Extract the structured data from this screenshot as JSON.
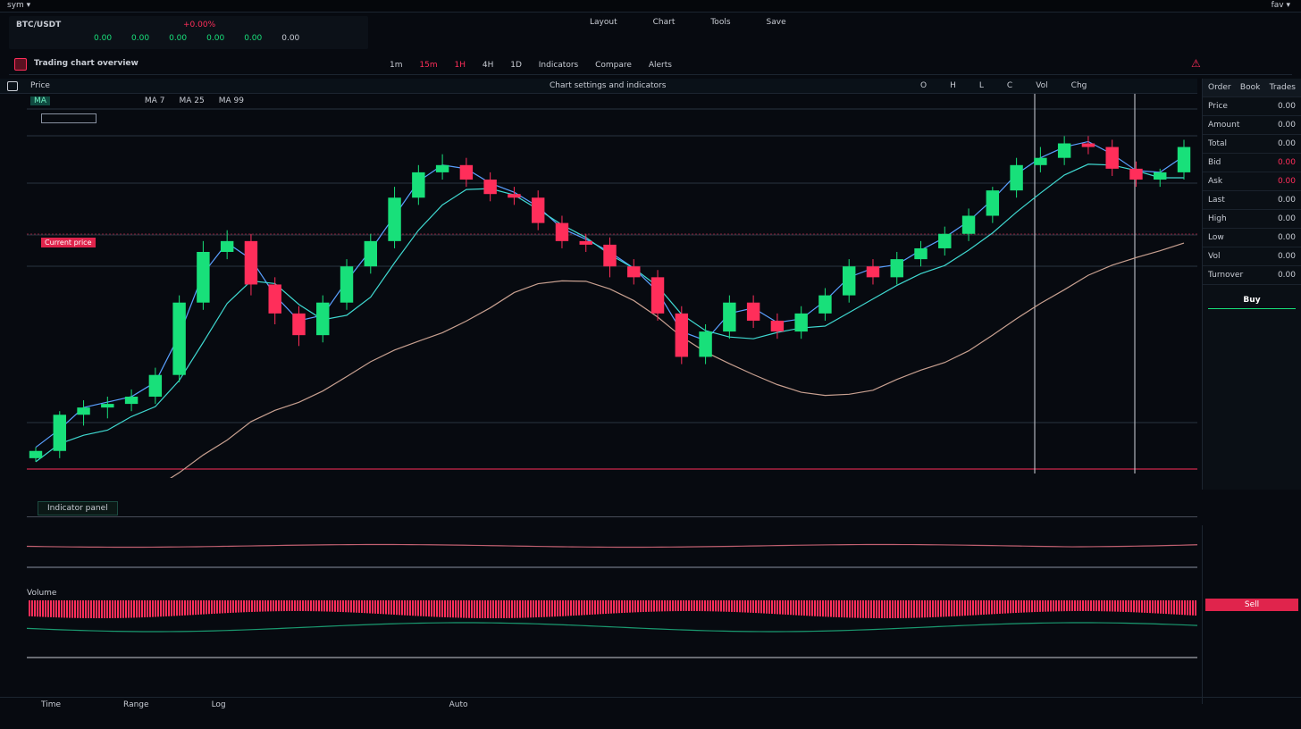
{
  "colors": {
    "up": "#18e07a",
    "down": "#ff2e5a",
    "ma_fast": "#5aa0ff",
    "ma_mid": "#3fd8d0",
    "ma_slow": "#c8a090",
    "bg": "#070a10"
  },
  "topbar": {
    "left": "sym ▾",
    "right": "fav ▾"
  },
  "ticker": {
    "symbol": "BTC/USDT",
    "change": "+0.00%",
    "stats": [
      "0.00",
      "0.00",
      "0.00",
      "0.00",
      "0.00",
      "0.00"
    ]
  },
  "toolbar": {
    "title": "Trading chart overview",
    "items": [
      "1m",
      "15m",
      "1H",
      "4H",
      "1D",
      "Indicators",
      "Compare",
      "Alerts"
    ],
    "alert_icon": "warning-icon"
  },
  "chart_header": {
    "left": "Price",
    "center": "Chart settings and indicators",
    "right": [
      "O",
      "H",
      "L",
      "C",
      "Vol",
      "Chg"
    ]
  },
  "legend": {
    "label": "MA",
    "values": [
      "MA 7",
      "MA 25",
      "MA 99"
    ]
  },
  "price_tag": "Current price",
  "top_nav": [
    "Layout",
    "Chart",
    "Tools",
    "Save"
  ],
  "right_panel": {
    "tabs": [
      "Order",
      "Book",
      "Trades"
    ],
    "rows": [
      [
        "Price",
        "0.00"
      ],
      [
        "Amount",
        "0.00"
      ],
      [
        "Total",
        "0.00"
      ],
      [
        "Bid",
        "0.00"
      ],
      [
        "Ask",
        "0.00"
      ],
      [
        "Last",
        "0.00"
      ],
      [
        "High",
        "0.00"
      ],
      [
        "Low",
        "0.00"
      ],
      [
        "Vol",
        "0.00"
      ],
      [
        "Turnover",
        "0.00"
      ]
    ],
    "buy_button": "Buy",
    "sell_button": "Sell"
  },
  "sub1": {
    "label": "Indicator panel"
  },
  "sub2": {
    "label": "Volume"
  },
  "bottom": {
    "items": [
      "Time",
      "Range",
      "Log",
      "Auto"
    ]
  },
  "chart_data": {
    "type": "candlestick",
    "ylim": [
      0,
      100
    ],
    "candles": [
      [
        3,
        6,
        2,
        5
      ],
      [
        5,
        16,
        3,
        15
      ],
      [
        15,
        19,
        12,
        17
      ],
      [
        17,
        20,
        14,
        18
      ],
      [
        18,
        22,
        16,
        20
      ],
      [
        20,
        28,
        18,
        26
      ],
      [
        26,
        48,
        24,
        46
      ],
      [
        46,
        63,
        44,
        60
      ],
      [
        60,
        66,
        58,
        63
      ],
      [
        63,
        65,
        48,
        51
      ],
      [
        51,
        53,
        40,
        43
      ],
      [
        43,
        45,
        34,
        37
      ],
      [
        37,
        48,
        35,
        46
      ],
      [
        46,
        58,
        44,
        56
      ],
      [
        56,
        65,
        54,
        63
      ],
      [
        63,
        78,
        61,
        75
      ],
      [
        75,
        84,
        73,
        82
      ],
      [
        82,
        87,
        80,
        84
      ],
      [
        84,
        86,
        78,
        80
      ],
      [
        80,
        82,
        74,
        76
      ],
      [
        76,
        78,
        73,
        75
      ],
      [
        75,
        77,
        66,
        68
      ],
      [
        68,
        70,
        61,
        63
      ],
      [
        63,
        65,
        60,
        62
      ],
      [
        62,
        64,
        53,
        56
      ],
      [
        56,
        58,
        51,
        53
      ],
      [
        53,
        55,
        41,
        43
      ],
      [
        43,
        45,
        29,
        31
      ],
      [
        31,
        40,
        29,
        38
      ],
      [
        38,
        48,
        36,
        46
      ],
      [
        46,
        48,
        39,
        41
      ],
      [
        41,
        43,
        36,
        38
      ],
      [
        38,
        45,
        36,
        43
      ],
      [
        43,
        50,
        41,
        48
      ],
      [
        48,
        58,
        46,
        56
      ],
      [
        56,
        58,
        51,
        53
      ],
      [
        53,
        60,
        51,
        58
      ],
      [
        58,
        63,
        56,
        61
      ],
      [
        61,
        67,
        59,
        65
      ],
      [
        65,
        72,
        63,
        70
      ],
      [
        70,
        78,
        68,
        77
      ],
      [
        77,
        86,
        75,
        84
      ],
      [
        84,
        89,
        82,
        86
      ],
      [
        86,
        92,
        84,
        90
      ],
      [
        90,
        92,
        87,
        89
      ],
      [
        89,
        91,
        81,
        83
      ],
      [
        83,
        85,
        78,
        80
      ],
      [
        80,
        83,
        78,
        82
      ],
      [
        82,
        91,
        80,
        89
      ]
    ]
  }
}
